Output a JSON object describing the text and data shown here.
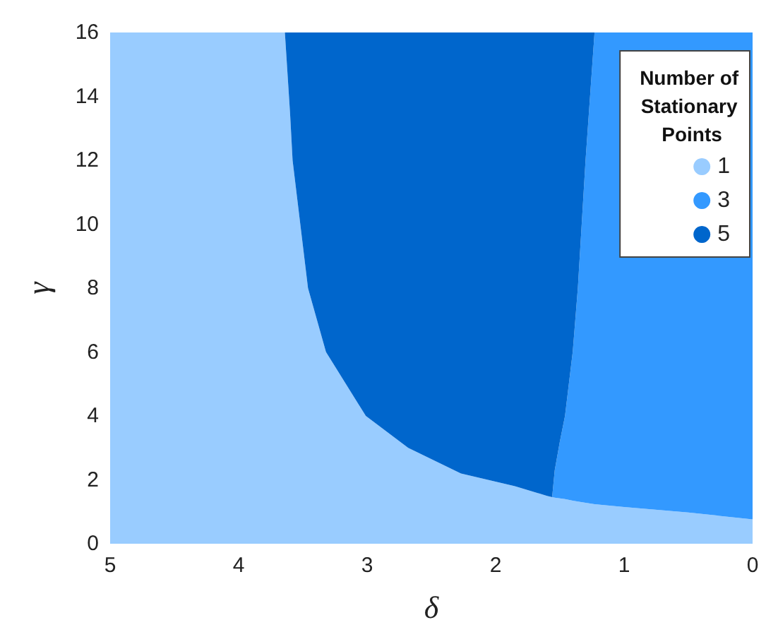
{
  "chart_data": {
    "type": "area",
    "stacked": true,
    "xlabel": "δ",
    "ylabel": "γ",
    "legend_title": "Number of Stationary Points",
    "legend": "top right",
    "x": [
      5,
      4,
      3.64,
      3.6,
      3.58,
      3.46,
      3.32,
      3.01,
      2.68,
      2.27,
      1.85,
      1.6,
      1.56,
      1.54,
      1.5,
      1.46,
      1.4,
      1.36,
      1.3,
      1.23,
      1.0,
      0.5,
      0
    ],
    "series": [
      {
        "name": "1",
        "color": "#99ccff",
        "values": [
          16,
          16,
          16,
          13.5,
          12,
          8,
          6,
          4,
          3,
          2.2,
          1.8,
          1.5,
          1.46,
          1.44,
          1.42,
          1.4,
          1.35,
          1.32,
          1.28,
          1.24,
          1.15,
          0.98,
          0.76
        ]
      },
      {
        "name": "3",
        "color": "#3399ff",
        "values": [
          0,
          0,
          0,
          0,
          0,
          0,
          0,
          0,
          0,
          0,
          0,
          0,
          0,
          0.86,
          1.78,
          2.6,
          4.65,
          6.68,
          10.72,
          14.76,
          14.85,
          15.02,
          15.24
        ]
      },
      {
        "name": "5",
        "color": "#0066cc",
        "values": [
          0,
          0,
          0,
          2.5,
          4,
          8,
          10,
          12,
          13,
          13.8,
          14.2,
          14.5,
          14.54,
          13.7,
          12.8,
          12,
          10,
          8,
          4,
          0,
          0,
          0,
          0
        ]
      }
    ],
    "xlim": [
      5,
      0
    ],
    "xticks": [
      5,
      4,
      3,
      2,
      1,
      0
    ],
    "ylim": [
      0,
      16
    ],
    "yticks": [
      0,
      2,
      4,
      6,
      8,
      10,
      12,
      14,
      16
    ]
  }
}
